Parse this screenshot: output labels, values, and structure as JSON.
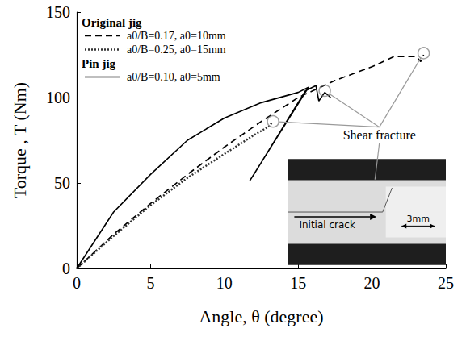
{
  "chart_data": {
    "type": "line",
    "x_label": "Angle, θ (degree)",
    "y_label": "Torque , T (Nm)",
    "xlim": [
      0,
      25
    ],
    "xticks": [
      0,
      5,
      10,
      15,
      20,
      25
    ],
    "ylim": [
      0,
      150
    ],
    "yticks": [
      0,
      50,
      100,
      150
    ],
    "grid": false,
    "legend": "upper left",
    "series": [
      {
        "name": "a0/B=0.17, a0=10mm",
        "group": "Original jig",
        "color": "#000000",
        "line_style": "dashed",
        "marker": "none",
        "x": [
          0,
          2.5,
          5,
          7.5,
          10,
          12.5,
          15,
          17.5,
          20,
          21.5,
          23,
          23.3,
          23.5
        ],
        "values": [
          0,
          20,
          38,
          55,
          71,
          86,
          100,
          110,
          118,
          124,
          124,
          121,
          125
        ],
        "fracture": {
          "x": 23.5,
          "y": 126
        }
      },
      {
        "name": "a0/B=0.25, a0=15mm",
        "group": "Original jig",
        "color": "#333333",
        "line_style": "dotted",
        "marker": "none",
        "x": [
          0,
          2.5,
          5,
          7.5,
          10,
          12,
          13,
          13.2
        ],
        "values": [
          0,
          19,
          37,
          53,
          67,
          78,
          83,
          85
        ],
        "fracture": {
          "x": 13.3,
          "y": 86
        }
      },
      {
        "name": "a0/B=0.10, a0=5mm",
        "group": "Pin jig",
        "color": "#000000",
        "line_style": "solid",
        "marker": "none",
        "x": [
          0,
          2.5,
          5,
          7.5,
          10,
          12.5,
          15,
          15.7,
          11.7,
          12,
          15.5,
          16.2,
          16.4,
          16.8,
          17.2
        ],
        "values": [
          0,
          33,
          55,
          75,
          88,
          97,
          103,
          106,
          51,
          55,
          104,
          107,
          98,
          103,
          100
        ],
        "fracture": {
          "x": 16.8,
          "y": 104
        }
      }
    ],
    "annotations": [
      {
        "text": "Shear fracture"
      }
    ],
    "inset": {
      "texts": [
        "Initial crack",
        "3mm"
      ]
    }
  }
}
